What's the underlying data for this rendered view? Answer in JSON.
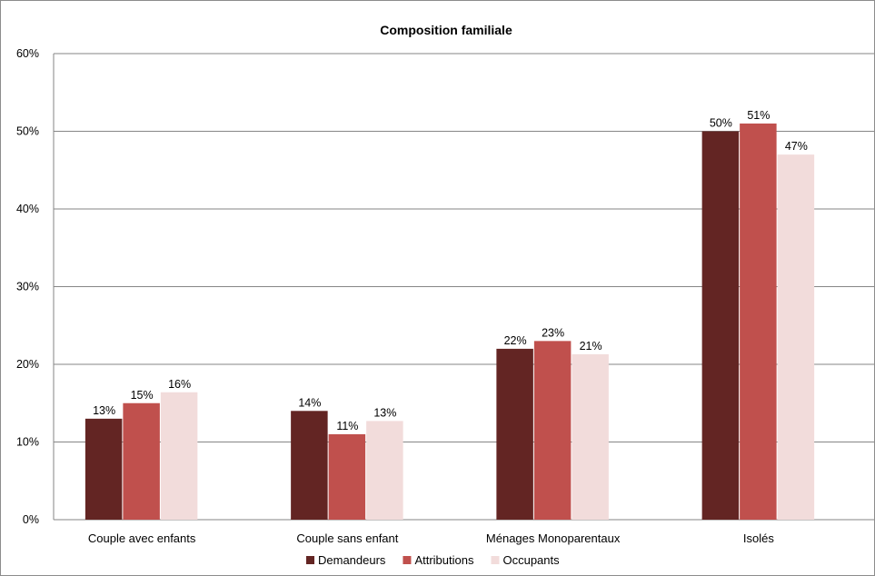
{
  "chart_data": {
    "type": "bar",
    "title": "Composition familiale",
    "xlabel": "",
    "ylabel": "",
    "ylim": [
      0,
      60
    ],
    "y_ticks": [
      "0%",
      "10%",
      "20%",
      "30%",
      "40%",
      "50%",
      "60%"
    ],
    "grid": true,
    "legend_position": "bottom",
    "categories": [
      "Couple avec enfants",
      "Couple sans enfant",
      "Ménages Monoparentaux",
      "Isolés"
    ],
    "series": [
      {
        "name": "Demandeurs",
        "color": "#632523",
        "values": [
          13,
          14,
          22,
          50
        ],
        "labels": [
          "13%",
          "14%",
          "22%",
          "50%"
        ]
      },
      {
        "name": "Attributions",
        "color": "#c0504d",
        "values": [
          15,
          11,
          23,
          51
        ],
        "labels": [
          "15%",
          "11%",
          "23%",
          "51%"
        ]
      },
      {
        "name": "Occupants",
        "color": "#f2dcdb",
        "values": [
          16.4,
          12.7,
          21.3,
          47
        ],
        "labels": [
          "16%",
          "13%",
          "21%",
          "47%"
        ]
      }
    ]
  }
}
